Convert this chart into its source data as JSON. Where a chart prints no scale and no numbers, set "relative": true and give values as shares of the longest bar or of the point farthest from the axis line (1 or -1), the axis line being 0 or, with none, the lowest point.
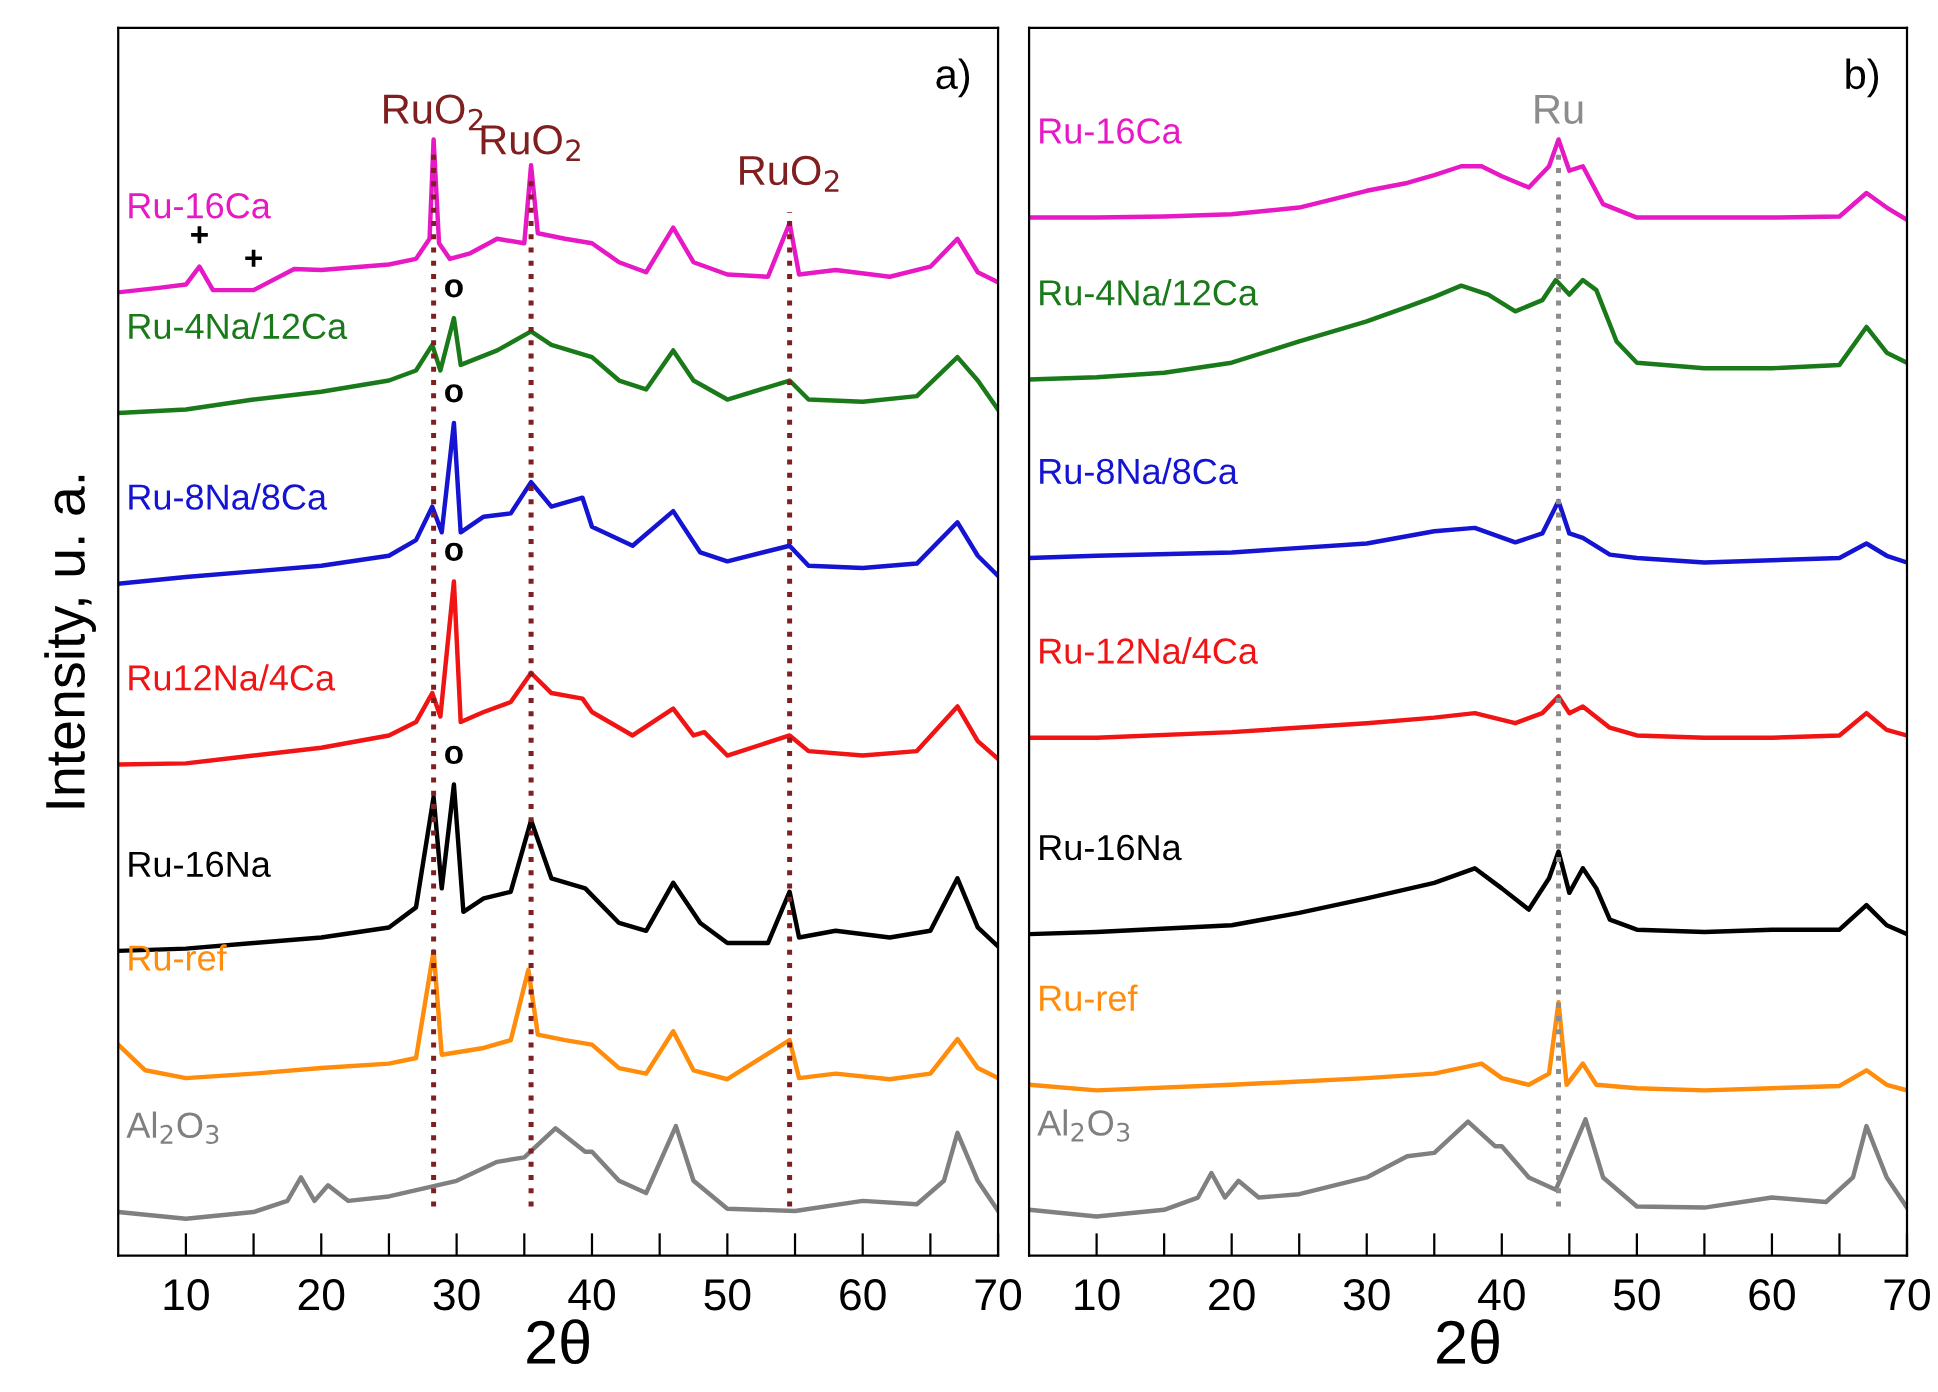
{
  "chart_data": [
    {
      "type": "line",
      "relative": true,
      "xlabel": "2θ",
      "ylabel": "Intensity, u. a.",
      "xlim": [
        5,
        70
      ],
      "xticks": [
        10,
        {
          "value": 15,
          "label": null
        },
        20,
        {
          "value": 25,
          "label": null
        },
        30,
        {
          "value": 35,
          "label": null
        },
        40,
        {
          "value": 45,
          "label": null
        },
        50,
        {
          "value": 55,
          "label": null
        },
        60,
        {
          "value": 65,
          "label": null
        },
        70
      ],
      "tick_labels": "x",
      "grid": false,
      "line_style": "solid",
      "marker": "none",
      "series": [
        {
          "name": "Ru-16Ca",
          "color": "#e619c4",
          "x": [
            5,
            8,
            10,
            11,
            12,
            15,
            18,
            20,
            25,
            27,
            28,
            28.3,
            28.7,
            29.5,
            31,
            33,
            35,
            35.5,
            36,
            38,
            40,
            42,
            44,
            46,
            47.5,
            50,
            53,
            54.6,
            55.3,
            58,
            62,
            65,
            67,
            68.5,
            70
          ],
          "values": [
            0.863,
            0.867,
            0.87,
            0.886,
            0.865,
            0.865,
            0.884,
            0.883,
            0.888,
            0.893,
            0.911,
            1.0,
            0.907,
            0.893,
            0.898,
            0.911,
            0.907,
            0.977,
            0.916,
            0.911,
            0.907,
            0.89,
            0.881,
            0.921,
            0.89,
            0.879,
            0.877,
            0.925,
            0.879,
            0.883,
            0.877,
            0.886,
            0.911,
            0.881,
            0.872
          ]
        },
        {
          "name": "Ru-4Na/12Ca",
          "color": "#1a7a1a",
          "x": [
            5,
            10,
            15,
            20,
            25,
            27,
            28.2,
            28.8,
            29.8,
            30.3,
            33,
            35.5,
            37,
            40,
            42,
            44,
            46,
            47.5,
            50,
            54.6,
            56,
            60,
            64,
            67,
            68.5,
            70
          ],
          "values": [
            0.755,
            0.758,
            0.767,
            0.774,
            0.784,
            0.793,
            0.816,
            0.793,
            0.84,
            0.798,
            0.811,
            0.828,
            0.816,
            0.805,
            0.784,
            0.776,
            0.811,
            0.784,
            0.767,
            0.784,
            0.767,
            0.765,
            0.77,
            0.805,
            0.784,
            0.758
          ]
        },
        {
          "name": "Ru-8Na/8Ca",
          "color": "#1414d2",
          "x": [
            5,
            10,
            15,
            20,
            25,
            27,
            28.2,
            28.9,
            29.8,
            30.3,
            32,
            34,
            35.5,
            37,
            39.3,
            40,
            43,
            46,
            48,
            50,
            54.6,
            56,
            60,
            64,
            67,
            68.5,
            70
          ],
          "values": [
            0.602,
            0.608,
            0.613,
            0.618,
            0.627,
            0.641,
            0.671,
            0.648,
            0.746,
            0.648,
            0.662,
            0.665,
            0.693,
            0.671,
            0.679,
            0.653,
            0.636,
            0.667,
            0.63,
            0.622,
            0.636,
            0.618,
            0.616,
            0.62,
            0.657,
            0.627,
            0.609
          ]
        },
        {
          "name": "Ru12Na/4Ca",
          "color": "#f01414",
          "x": [
            5,
            10,
            15,
            20,
            25,
            27,
            28.2,
            28.8,
            29.8,
            30.3,
            32,
            34,
            35.5,
            37,
            39.3,
            40,
            43,
            46,
            47.5,
            48.3,
            50,
            54.6,
            56,
            60,
            64,
            67,
            68.5,
            70
          ],
          "values": [
            0.44,
            0.441,
            0.448,
            0.455,
            0.466,
            0.478,
            0.504,
            0.483,
            0.604,
            0.478,
            0.487,
            0.496,
            0.522,
            0.504,
            0.499,
            0.487,
            0.466,
            0.49,
            0.466,
            0.469,
            0.448,
            0.466,
            0.452,
            0.448,
            0.452,
            0.492,
            0.461,
            0.445
          ]
        },
        {
          "name": "Ru-16Na",
          "color": "#000000",
          "x": [
            5,
            10,
            15,
            20,
            25,
            27,
            28.3,
            28.9,
            29.8,
            30.5,
            32,
            34,
            35.5,
            37,
            39.5,
            42,
            44,
            46,
            48,
            50,
            53,
            54.6,
            55.3,
            58,
            62,
            65,
            67,
            68.5,
            70
          ],
          "values": [
            0.273,
            0.275,
            0.28,
            0.285,
            0.294,
            0.312,
            0.411,
            0.329,
            0.422,
            0.308,
            0.32,
            0.326,
            0.39,
            0.338,
            0.329,
            0.298,
            0.291,
            0.334,
            0.298,
            0.28,
            0.28,
            0.326,
            0.285,
            0.291,
            0.285,
            0.291,
            0.338,
            0.294,
            0.277
          ]
        },
        {
          "name": "Ru-ref",
          "color": "#ff8c0a",
          "x": [
            5,
            7,
            10,
            15,
            20,
            25,
            27,
            28.3,
            28.9,
            32,
            34,
            35.3,
            36,
            38,
            40,
            42,
            44,
            46,
            47.5,
            50,
            54.6,
            55.3,
            58,
            62,
            65,
            67,
            68.5,
            70
          ],
          "values": [
            0.189,
            0.166,
            0.159,
            0.163,
            0.168,
            0.172,
            0.177,
            0.273,
            0.18,
            0.186,
            0.193,
            0.256,
            0.198,
            0.193,
            0.189,
            0.168,
            0.163,
            0.201,
            0.166,
            0.158,
            0.193,
            0.159,
            0.163,
            0.158,
            0.163,
            0.194,
            0.168,
            0.159
          ]
        },
        {
          "name": "Al$_{2}$O$_{3}$",
          "color": "#808080",
          "x": [
            5,
            10,
            15,
            17.5,
            18.5,
            19.5,
            20.5,
            22,
            25,
            30,
            33,
            35,
            37.3,
            39.5,
            40,
            42,
            44,
            46.2,
            47.5,
            50,
            55,
            60,
            64,
            66,
            67,
            68.5,
            70
          ],
          "values": [
            0.039,
            0.033,
            0.039,
            0.049,
            0.07,
            0.049,
            0.063,
            0.049,
            0.053,
            0.067,
            0.084,
            0.088,
            0.114,
            0.093,
            0.093,
            0.067,
            0.056,
            0.116,
            0.067,
            0.042,
            0.04,
            0.049,
            0.046,
            0.067,
            0.11,
            0.067,
            0.04
          ]
        }
      ],
      "ref_lines": [
        {
          "axis": "x",
          "value": 28.3,
          "label": "RuO$_{2}$",
          "color": "#7f1f1f",
          "line_style": "dotted"
        },
        {
          "axis": "x",
          "value": 35.5,
          "label": "RuO$_{2}$",
          "color": "#7f1f1f",
          "line_style": "dotted"
        },
        {
          "axis": "x",
          "value": 54.6,
          "label": "RuO$_{2}$",
          "color": "#7f1f1f",
          "line_style": "dotted"
        }
      ],
      "annotations": [
        "a)",
        {
          "text": "+",
          "x": 11,
          "y": 0.886
        },
        {
          "text": "+",
          "x": 15,
          "y": 0.865
        },
        {
          "text": "o",
          "x": 29.8,
          "y": 0.84
        },
        {
          "text": "o",
          "x": 29.8,
          "y": 0.746
        },
        {
          "text": "o",
          "x": 29.8,
          "y": 0.604
        },
        {
          "text": "o",
          "x": 29.8,
          "y": 0.422
        }
      ]
    },
    {
      "type": "line",
      "relative": true,
      "xlabel": "2θ",
      "xlim": [
        5,
        70
      ],
      "xticks": [
        10,
        {
          "value": 15,
          "label": null
        },
        20,
        {
          "value": 25,
          "label": null
        },
        30,
        {
          "value": 35,
          "label": null
        },
        40,
        {
          "value": 45,
          "label": null
        },
        50,
        {
          "value": 55,
          "label": null
        },
        60,
        {
          "value": 65,
          "label": null
        },
        70
      ],
      "tick_labels": "x",
      "grid": false,
      "line_style": "solid",
      "marker": "none",
      "series": [
        {
          "name": "Ru-16Ca",
          "color": "#e619c4",
          "x": [
            5,
            10,
            15,
            20,
            25,
            30,
            33,
            35,
            37,
            38.5,
            40,
            42,
            43.5,
            44.2,
            45,
            46,
            47.5,
            50,
            55,
            60,
            65,
            67,
            68.5,
            70
          ],
          "values": [
            0.93,
            0.93,
            0.931,
            0.933,
            0.939,
            0.954,
            0.961,
            0.968,
            0.976,
            0.976,
            0.967,
            0.957,
            0.976,
            1.0,
            0.972,
            0.976,
            0.942,
            0.93,
            0.93,
            0.93,
            0.931,
            0.952,
            0.939,
            0.928
          ]
        },
        {
          "name": "Ru-4Na/12Ca",
          "color": "#1a7a1a",
          "x": [
            5,
            10,
            15,
            20,
            25,
            30,
            33,
            35,
            37,
            39,
            41,
            43,
            44,
            45,
            46,
            47,
            48.5,
            50,
            55,
            60,
            65,
            67,
            68.5,
            70
          ],
          "values": [
            0.785,
            0.787,
            0.791,
            0.8,
            0.819,
            0.837,
            0.85,
            0.859,
            0.869,
            0.861,
            0.846,
            0.856,
            0.874,
            0.861,
            0.874,
            0.865,
            0.819,
            0.8,
            0.795,
            0.795,
            0.798,
            0.832,
            0.809,
            0.8
          ]
        },
        {
          "name": "Ru-8Na/8Ca",
          "color": "#1414d2",
          "x": [
            5,
            10,
            20,
            30,
            35,
            38,
            41,
            43,
            44.2,
            45,
            46,
            48,
            50,
            55,
            60,
            65,
            67,
            68.5,
            70
          ],
          "values": [
            0.625,
            0.627,
            0.63,
            0.638,
            0.649,
            0.652,
            0.639,
            0.647,
            0.676,
            0.647,
            0.643,
            0.628,
            0.625,
            0.621,
            0.623,
            0.625,
            0.638,
            0.627,
            0.621
          ]
        },
        {
          "name": "Ru-12Na/4Ca",
          "color": "#f01414",
          "x": [
            5,
            10,
            20,
            30,
            35,
            38,
            41,
            43,
            44.2,
            45,
            46,
            48,
            50,
            55,
            60,
            65,
            67,
            68.5,
            70
          ],
          "values": [
            0.464,
            0.464,
            0.469,
            0.477,
            0.482,
            0.486,
            0.477,
            0.486,
            0.501,
            0.486,
            0.492,
            0.473,
            0.466,
            0.464,
            0.464,
            0.466,
            0.486,
            0.471,
            0.466
          ]
        },
        {
          "name": "Ru-16Na",
          "color": "#000000",
          "x": [
            5,
            10,
            20,
            25,
            30,
            35,
            38,
            40,
            42,
            43.5,
            44.2,
            45,
            46,
            47,
            48,
            50,
            55,
            60,
            65,
            67,
            68.5,
            70
          ],
          "values": [
            0.288,
            0.29,
            0.296,
            0.307,
            0.32,
            0.334,
            0.347,
            0.329,
            0.31,
            0.338,
            0.362,
            0.325,
            0.347,
            0.329,
            0.301,
            0.292,
            0.29,
            0.292,
            0.292,
            0.314,
            0.296,
            0.288
          ]
        },
        {
          "name": "Ru-ref",
          "color": "#ff8c0a",
          "x": [
            5,
            10,
            20,
            30,
            35,
            38.5,
            40,
            42,
            43.5,
            44.2,
            44.8,
            46,
            47,
            50,
            55,
            60,
            65,
            67,
            68.5,
            70
          ],
          "values": [
            0.153,
            0.148,
            0.153,
            0.159,
            0.163,
            0.172,
            0.159,
            0.153,
            0.163,
            0.227,
            0.153,
            0.172,
            0.153,
            0.15,
            0.148,
            0.15,
            0.152,
            0.166,
            0.153,
            0.148
          ]
        },
        {
          "name": "Al$_{2}$O$_{3}$",
          "color": "#808080",
          "x": [
            5,
            10,
            15,
            17.5,
            18.5,
            19.5,
            20.5,
            22,
            25,
            30,
            33,
            35,
            37.5,
            39.5,
            40,
            42,
            44,
            46.2,
            47.5,
            50,
            55,
            60,
            64,
            66,
            67,
            68.5,
            70
          ],
          "values": [
            0.041,
            0.035,
            0.041,
            0.052,
            0.074,
            0.052,
            0.067,
            0.052,
            0.055,
            0.07,
            0.089,
            0.092,
            0.12,
            0.098,
            0.098,
            0.07,
            0.059,
            0.122,
            0.07,
            0.044,
            0.043,
            0.052,
            0.048,
            0.07,
            0.116,
            0.07,
            0.043
          ]
        }
      ],
      "ref_lines": [
        {
          "axis": "x",
          "value": 44.2,
          "label": "Ru",
          "color": "#8c8c8c",
          "line_style": "dotted"
        }
      ],
      "annotations": [
        "b)"
      ]
    }
  ]
}
